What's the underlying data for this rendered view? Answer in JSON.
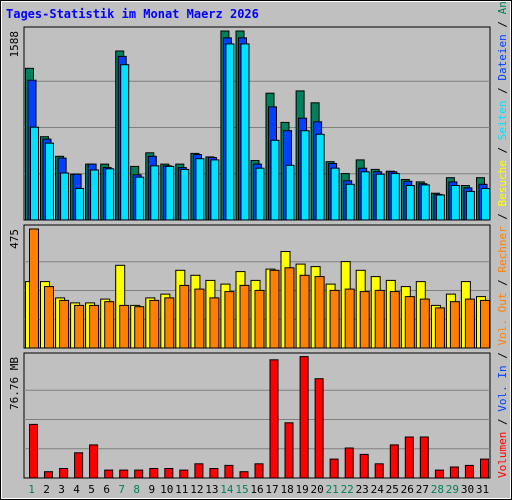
{
  "title": "Tages-Statistik im Monat Maerz 2026",
  "colors": {
    "background": "#c0c0c0",
    "plot_bg": "#c0c0c0",
    "title": "#0000ff",
    "hits": "#00805c",
    "files": "#0040ff",
    "pages": "#00e0ff",
    "visits": "#ffff00",
    "sites": "#ff8000",
    "kbytes": "#ff0000",
    "weekend_label": "#00805c",
    "weekday_label": "#000000"
  },
  "right_labels": {
    "top": [
      {
        "text": "Anfragen",
        "color": "#00805c"
      },
      {
        "text": " / ",
        "color": "#000000"
      },
      {
        "text": "Dateien",
        "color": "#0040ff"
      },
      {
        "text": " / ",
        "color": "#000000"
      },
      {
        "text": "Seiten",
        "color": "#00e0ff"
      },
      {
        "text": " / ",
        "color": "#000000"
      },
      {
        "text": "Besuche",
        "color": "#ffff00"
      },
      {
        "text": " / ",
        "color": "#000000"
      },
      {
        "text": "Rechner",
        "color": "#ff8000"
      },
      {
        "text": " / ",
        "color": "#000000"
      },
      {
        "text": "Vol. Out",
        "color": "#ff8000"
      },
      {
        "text": " / ",
        "color": "#000000"
      },
      {
        "text": "Vol. In",
        "color": "#0040ff"
      },
      {
        "text": " / ",
        "color": "#000000"
      },
      {
        "text": "Volumen",
        "color": "#ff0000"
      }
    ]
  },
  "chart_data": [
    {
      "type": "bar",
      "panel": "hits_files_pages",
      "ymax_label": "1588",
      "ylim": [
        0,
        1588
      ],
      "grid": true,
      "categories": [
        "1",
        "2",
        "3",
        "4",
        "5",
        "6",
        "7",
        "8",
        "9",
        "10",
        "11",
        "12",
        "13",
        "14",
        "15",
        "16",
        "17",
        "18",
        "19",
        "20",
        "21",
        "22",
        "23",
        "24",
        "25",
        "26",
        "27",
        "28",
        "29",
        "30",
        "31"
      ],
      "series": [
        {
          "name": "Anfragen",
          "color": "#00805c",
          "values": [
            1275,
            700,
            535,
            385,
            470,
            470,
            1420,
            450,
            565,
            470,
            470,
            560,
            530,
            1588,
            1588,
            500,
            1065,
            820,
            1085,
            985,
            490,
            390,
            505,
            425,
            410,
            340,
            320,
            225,
            355,
            290,
            355
          ]
        },
        {
          "name": "Dateien",
          "color": "#0040ff",
          "values": [
            1175,
            680,
            520,
            385,
            470,
            440,
            1375,
            380,
            535,
            455,
            440,
            550,
            525,
            1530,
            1530,
            470,
            950,
            750,
            855,
            825,
            475,
            330,
            435,
            405,
            405,
            325,
            305,
            215,
            320,
            270,
            300
          ]
        },
        {
          "name": "Seiten",
          "color": "#00e0ff",
          "values": [
            780,
            645,
            395,
            265,
            420,
            430,
            1305,
            360,
            455,
            450,
            425,
            515,
            505,
            1480,
            1480,
            435,
            670,
            460,
            750,
            720,
            435,
            300,
            405,
            385,
            390,
            290,
            295,
            210,
            290,
            240,
            265
          ]
        }
      ]
    },
    {
      "type": "bar",
      "panel": "visits_sites",
      "ymax_label": "475",
      "ylim": [
        0,
        475
      ],
      "grid": true,
      "categories": [
        "1",
        "2",
        "3",
        "4",
        "5",
        "6",
        "7",
        "8",
        "9",
        "10",
        "11",
        "12",
        "13",
        "14",
        "15",
        "16",
        "17",
        "18",
        "19",
        "20",
        "21",
        "22",
        "23",
        "24",
        "25",
        "26",
        "27",
        "28",
        "29",
        "30",
        "31"
      ],
      "series": [
        {
          "name": "Besuche",
          "color": "#ffff00",
          "values": [
            265,
            265,
            200,
            180,
            180,
            195,
            330,
            170,
            200,
            215,
            310,
            290,
            270,
            255,
            305,
            270,
            315,
            385,
            335,
            325,
            255,
            345,
            310,
            285,
            270,
            245,
            265,
            170,
            215,
            265,
            205
          ]
        },
        {
          "name": "Rechner",
          "color": "#ff8000",
          "values": [
            475,
            245,
            190,
            170,
            170,
            185,
            170,
            165,
            190,
            200,
            250,
            235,
            200,
            225,
            250,
            230,
            310,
            320,
            290,
            285,
            230,
            235,
            225,
            230,
            225,
            205,
            195,
            160,
            185,
            195,
            190
          ]
        }
      ]
    },
    {
      "type": "bar",
      "panel": "volume",
      "ymax_label": "76.76 MB",
      "ylim": [
        0,
        76.76
      ],
      "grid": true,
      "categories": [
        "1",
        "2",
        "3",
        "4",
        "5",
        "6",
        "7",
        "8",
        "9",
        "10",
        "11",
        "12",
        "13",
        "14",
        "15",
        "16",
        "17",
        "18",
        "19",
        "20",
        "21",
        "22",
        "23",
        "24",
        "25",
        "26",
        "27",
        "28",
        "29",
        "30",
        "31"
      ],
      "series": [
        {
          "name": "Volumen",
          "color": "#ff0000",
          "values": [
            34,
            4,
            6,
            16,
            21,
            5,
            5,
            5,
            6,
            6,
            5,
            9,
            6,
            8,
            4,
            9,
            75,
            35,
            77,
            63,
            12,
            19,
            15,
            9,
            21,
            26,
            26,
            5,
            7,
            8,
            12
          ]
        }
      ]
    }
  ],
  "x_labels": [
    {
      "text": "1",
      "weekend": true
    },
    {
      "text": "2",
      "weekend": false
    },
    {
      "text": "3",
      "weekend": false
    },
    {
      "text": "4",
      "weekend": false
    },
    {
      "text": "5",
      "weekend": false
    },
    {
      "text": "6",
      "weekend": false
    },
    {
      "text": "7",
      "weekend": true
    },
    {
      "text": "8",
      "weekend": true
    },
    {
      "text": "9",
      "weekend": false
    },
    {
      "text": "10",
      "weekend": false
    },
    {
      "text": "11",
      "weekend": false
    },
    {
      "text": "12",
      "weekend": false
    },
    {
      "text": "13",
      "weekend": false
    },
    {
      "text": "14",
      "weekend": true
    },
    {
      "text": "15",
      "weekend": true
    },
    {
      "text": "16",
      "weekend": false
    },
    {
      "text": "17",
      "weekend": false
    },
    {
      "text": "18",
      "weekend": false
    },
    {
      "text": "19",
      "weekend": false
    },
    {
      "text": "20",
      "weekend": false
    },
    {
      "text": "21",
      "weekend": true
    },
    {
      "text": "22",
      "weekend": true
    },
    {
      "text": "23",
      "weekend": false
    },
    {
      "text": "24",
      "weekend": false
    },
    {
      "text": "25",
      "weekend": false
    },
    {
      "text": "26",
      "weekend": false
    },
    {
      "text": "27",
      "weekend": false
    },
    {
      "text": "28",
      "weekend": true
    },
    {
      "text": "29",
      "weekend": true
    },
    {
      "text": "30",
      "weekend": false
    },
    {
      "text": "31",
      "weekend": false
    }
  ]
}
